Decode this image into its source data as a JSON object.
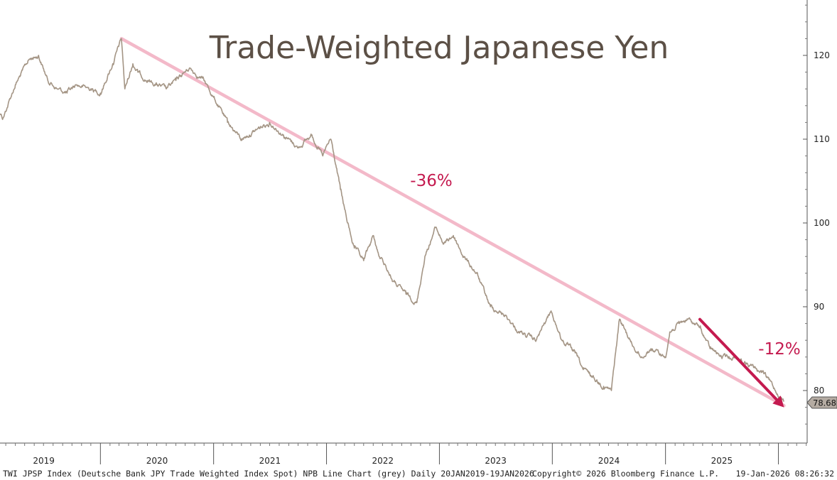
{
  "chart_data": {
    "type": "line",
    "title": "Trade-Weighted Japanese Yen",
    "xlabel": "",
    "ylabel": "",
    "x_tick_labels": [
      "2019",
      "2020",
      "2021",
      "2022",
      "2023",
      "2024",
      "2025"
    ],
    "y_ticks": [
      80,
      90,
      100,
      110,
      120
    ],
    "ylim": [
      74.3,
      127.5
    ],
    "grid": false,
    "legend": "none",
    "series": [
      {
        "color": "#a49585",
        "x": [
          "2019-01-20",
          "2019-02-20",
          "2019-04-01",
          "2019-05-15",
          "2019-06-15",
          "2019-07-15",
          "2019-08-15",
          "2019-09-15",
          "2019-10-15",
          "2019-12-01",
          "2020-01-01",
          "2020-02-10",
          "2020-03-09",
          "2020-03-20",
          "2020-04-15",
          "2020-05-01",
          "2020-06-01",
          "2020-07-01",
          "2020-08-01",
          "2020-09-01",
          "2020-10-15",
          "2020-12-01",
          "2021-01-01",
          "2021-02-15",
          "2021-04-01",
          "2021-05-15",
          "2021-07-01",
          "2021-08-15",
          "2021-10-01",
          "2021-11-15",
          "2021-12-20",
          "2022-01-15",
          "2022-02-15",
          "2022-03-10",
          "2022-04-01",
          "2022-05-01",
          "2022-06-01",
          "2022-06-20",
          "2022-07-10",
          "2022-08-05",
          "2022-09-15",
          "2022-10-20",
          "2022-11-15",
          "2022-12-20",
          "2023-01-15",
          "2023-02-15",
          "2023-03-20",
          "2023-05-01",
          "2023-06-15",
          "2023-08-01",
          "2023-09-15",
          "2023-11-10",
          "2023-12-28",
          "2024-02-01",
          "2024-03-15",
          "2024-04-10",
          "2024-05-15",
          "2024-06-15",
          "2024-07-10",
          "2024-08-05",
          "2024-09-15",
          "2024-10-15",
          "2024-11-15",
          "2024-12-31",
          "2025-01-15",
          "2025-02-15",
          "2025-03-15",
          "2025-04-22",
          "2025-05-25",
          "2025-07-01",
          "2025-08-15",
          "2025-10-01",
          "2025-11-15",
          "2025-12-15",
          "2026-01-19"
        ],
        "values": [
          114.5,
          112.5,
          116.5,
          119.5,
          120.0,
          117.0,
          116.0,
          115.5,
          116.5,
          116.0,
          115.5,
          119.0,
          122.0,
          116.0,
          119.0,
          118.0,
          117.0,
          116.5,
          116.0,
          117.0,
          118.5,
          117.0,
          115.0,
          112.0,
          110.0,
          111.0,
          112.0,
          110.5,
          109.0,
          110.5,
          108.0,
          110.0,
          104.0,
          100.0,
          97.0,
          95.5,
          98.5,
          96.0,
          95.0,
          93.0,
          91.5,
          90.5,
          96.0,
          99.5,
          97.5,
          98.5,
          96.0,
          94.0,
          90.0,
          89.0,
          87.0,
          86.0,
          89.5,
          86.0,
          84.5,
          82.5,
          81.5,
          80.5,
          80.0,
          88.5,
          85.5,
          84.0,
          85.0,
          84.0,
          87.0,
          88.0,
          88.5,
          87.5,
          85.0,
          84.0,
          84.0,
          83.0,
          82.0,
          80.5,
          78.68
        ]
      }
    ],
    "last_value_label": "78.68",
    "trend_lines": [
      {
        "label": "-36%",
        "color": "#f3b9c9",
        "x": [
          "2020-03-09",
          "2026-01-19"
        ],
        "y": [
          122.0,
          78.2
        ]
      },
      {
        "label": "-12%",
        "color": "#c41a4f",
        "arrow": true,
        "x": [
          "2025-04-22",
          "2026-01-19"
        ],
        "y": [
          88.5,
          78.0
        ]
      }
    ]
  },
  "footer": {
    "left": "TWI JPSP Index (Deutsche Bank JPY Trade Weighted Index Spot) NPB Line Chart (grey) Daily 20JAN2019-19JAN2026",
    "center": "Copyright© 2026 Bloomberg Finance L.P.",
    "right": "19-Jan-2026 08:26:32"
  }
}
